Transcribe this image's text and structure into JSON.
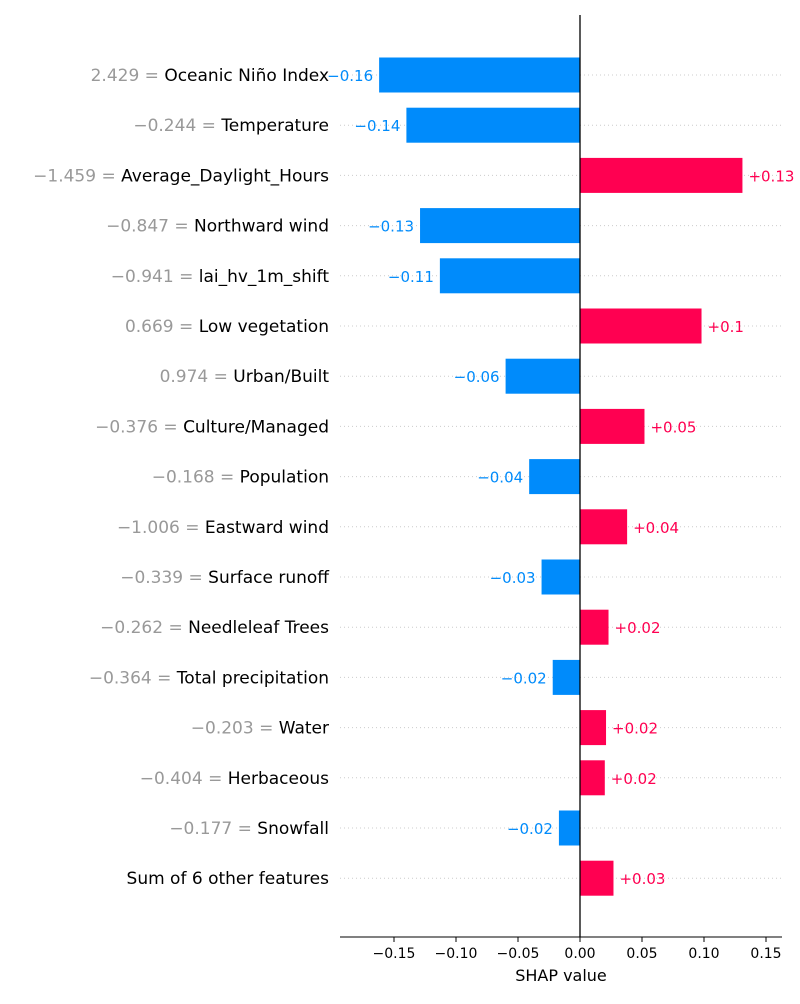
{
  "chart_data": {
    "type": "bar",
    "orientation": "horizontal",
    "chart_kind": "waterfall-style SHAP bar plot",
    "xlabel": "SHAP value",
    "ylabel": "",
    "title": "",
    "xlim": [
      -0.19,
      0.16
    ],
    "xticks": [
      -0.15,
      -0.1,
      -0.05,
      0.0,
      0.05,
      0.1,
      0.15
    ],
    "xtick_labels": [
      "−0.15",
      "−0.10",
      "−0.05",
      "0.00",
      "0.05",
      "0.10",
      "0.15"
    ],
    "grid": "horizontal dotted",
    "features": [
      {
        "feature_value": "2.429 =",
        "feature_name": "Oceanic Niño Index",
        "value": -0.162,
        "label": "−0.16"
      },
      {
        "feature_value": "−0.244 =",
        "feature_name": "Temperature",
        "value": -0.14,
        "label": "−0.14"
      },
      {
        "feature_value": "−1.459 =",
        "feature_name": "Average_Daylight_Hours",
        "value": 0.131,
        "label": "+0.13"
      },
      {
        "feature_value": "−0.847 =",
        "feature_name": "Northward wind",
        "value": -0.129,
        "label": "−0.13"
      },
      {
        "feature_value": "−0.941 =",
        "feature_name": "lai_hv_1m_shift",
        "value": -0.113,
        "label": "−0.11"
      },
      {
        "feature_value": "0.669 =",
        "feature_name": "Low vegetation",
        "value": 0.098,
        "label": "+0.1"
      },
      {
        "feature_value": "0.974 =",
        "feature_name": "Urban/Built",
        "value": -0.06,
        "label": "−0.06"
      },
      {
        "feature_value": "−0.376 =",
        "feature_name": "Culture/Managed",
        "value": 0.052,
        "label": "+0.05"
      },
      {
        "feature_value": "−0.168 =",
        "feature_name": "Population",
        "value": -0.041,
        "label": "−0.04"
      },
      {
        "feature_value": "−1.006 =",
        "feature_name": "Eastward wind",
        "value": 0.038,
        "label": "+0.04"
      },
      {
        "feature_value": "−0.339 =",
        "feature_name": "Surface runoff",
        "value": -0.031,
        "label": "−0.03"
      },
      {
        "feature_value": "−0.262 =",
        "feature_name": "Needleleaf Trees",
        "value": 0.023,
        "label": "+0.02"
      },
      {
        "feature_value": "−0.364 =",
        "feature_name": "Total precipitation",
        "value": -0.022,
        "label": "−0.02"
      },
      {
        "feature_value": "−0.203 =",
        "feature_name": "Water",
        "value": 0.021,
        "label": "+0.02"
      },
      {
        "feature_value": "−0.404 =",
        "feature_name": "Herbaceous",
        "value": 0.02,
        "label": "+0.02"
      },
      {
        "feature_value": "−0.177 =",
        "feature_name": "Snowfall",
        "value": -0.017,
        "label": "−0.02"
      },
      {
        "feature_value": "",
        "feature_name": "Sum of 6 other features",
        "value": 0.027,
        "label": "+0.03"
      }
    ],
    "colors": {
      "positive": "#ff0051",
      "negative": "#008bfb",
      "feature_value_text": "#999999",
      "feature_name_text": "#000000",
      "axis": "#000000",
      "grid": "#cccccc"
    }
  }
}
